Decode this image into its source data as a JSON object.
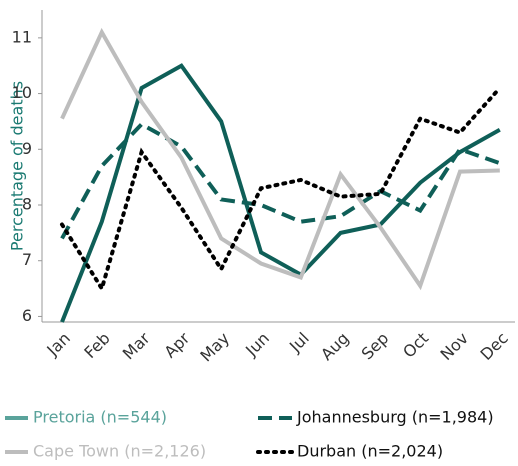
{
  "chart_data": {
    "type": "line",
    "y_label": "Percentage of deaths",
    "categories": [
      "Jan",
      "Feb",
      "Mar",
      "Apr",
      "May",
      "Jun",
      "Jul",
      "Aug",
      "Sep",
      "Oct",
      "Nov",
      "Dec"
    ],
    "ylim": [
      5.9,
      11.5
    ],
    "yticks": [
      6,
      7,
      8,
      9,
      10,
      11
    ],
    "series": [
      {
        "name": "Pretoria (n=544)",
        "color": "#0f5f58",
        "style": "solid",
        "values": [
          5.9,
          7.7,
          10.1,
          10.5,
          9.5,
          7.15,
          6.75,
          7.5,
          7.65,
          8.4,
          8.95,
          9.35
        ]
      },
      {
        "name": "Johannesburg (n=1,984)",
        "color": "#0f5f58",
        "style": "dashed",
        "values": [
          7.4,
          8.7,
          9.45,
          9.05,
          8.1,
          8.0,
          7.7,
          7.8,
          8.25,
          7.9,
          9.0,
          8.75
        ]
      },
      {
        "name": "Cape Town (n=2,126)",
        "color": "#bdbdbd",
        "style": "solid",
        "values": [
          9.55,
          11.1,
          9.85,
          8.85,
          7.4,
          6.95,
          6.7,
          8.55,
          7.6,
          6.55,
          8.6,
          8.62
        ]
      },
      {
        "name": "Durban (n=2,024)",
        "color": "#000000",
        "style": "dotted",
        "values": [
          7.65,
          6.5,
          8.95,
          7.95,
          6.85,
          8.3,
          8.45,
          8.15,
          8.2,
          9.55,
          9.3,
          10.1
        ]
      }
    ]
  }
}
